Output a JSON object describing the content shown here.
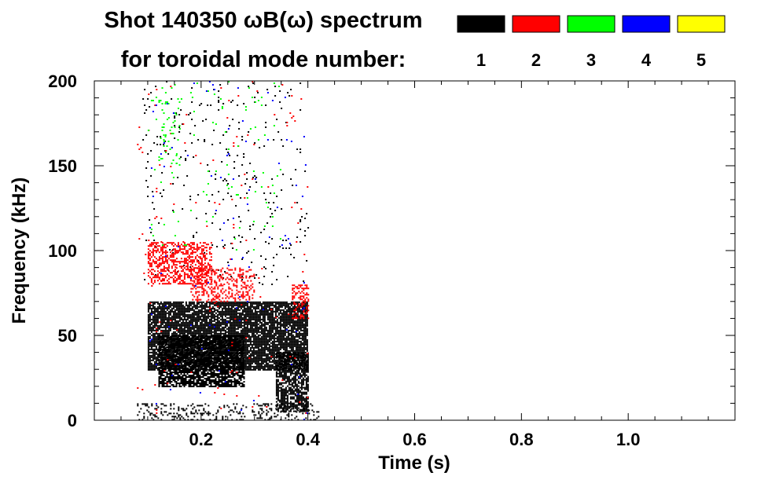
{
  "chart_data": {
    "type": "heatmap",
    "title_line1": "Shot 140350 ωB(ω) spectrum",
    "title_line2": "for toroidal mode number:",
    "xlabel": "Time (s)",
    "ylabel": "Frequency (kHz)",
    "xlim": [
      0.0,
      1.2
    ],
    "ylim": [
      0,
      200
    ],
    "x_ticks": [
      "0.2",
      "0.4",
      "0.6",
      "0.8",
      "1.0"
    ],
    "x_tick_values": [
      0.2,
      0.4,
      0.6,
      0.8,
      1.0
    ],
    "y_ticks": [
      "0",
      "50",
      "100",
      "150",
      "200"
    ],
    "y_tick_values": [
      0,
      50,
      100,
      150,
      200
    ],
    "legend": [
      {
        "label": "1",
        "color": "#000000"
      },
      {
        "label": "2",
        "color": "#ff0000"
      },
      {
        "label": "3",
        "color": "#00ff00"
      },
      {
        "label": "4",
        "color": "#0000ff"
      },
      {
        "label": "5",
        "color": "#ffff00"
      }
    ],
    "regions": [
      {
        "mode": "1",
        "t": [
          0.1,
          0.4
        ],
        "f": [
          30,
          70
        ],
        "density": 0.85
      },
      {
        "mode": "1",
        "t": [
          0.12,
          0.28
        ],
        "f": [
          20,
          50
        ],
        "density": 0.75
      },
      {
        "mode": "1",
        "t": [
          0.34,
          0.4
        ],
        "f": [
          5,
          40
        ],
        "density": 0.7
      },
      {
        "mode": "1",
        "t": [
          0.08,
          0.42
        ],
        "f": [
          0,
          10
        ],
        "density": 0.2
      },
      {
        "mode": "1",
        "t": [
          0.09,
          0.4
        ],
        "f": [
          80,
          200
        ],
        "density": 0.02
      },
      {
        "mode": "2",
        "t": [
          0.1,
          0.22
        ],
        "f": [
          80,
          105
        ],
        "density": 0.45
      },
      {
        "mode": "2",
        "t": [
          0.18,
          0.3
        ],
        "f": [
          70,
          90
        ],
        "density": 0.3
      },
      {
        "mode": "2",
        "t": [
          0.37,
          0.4
        ],
        "f": [
          60,
          80
        ],
        "density": 0.45
      },
      {
        "mode": "2",
        "t": [
          0.08,
          0.4
        ],
        "f": [
          0,
          200
        ],
        "density": 0.006
      },
      {
        "mode": "3",
        "t": [
          0.12,
          0.16
        ],
        "f": [
          150,
          200
        ],
        "density": 0.05
      },
      {
        "mode": "3",
        "t": [
          0.1,
          0.35
        ],
        "f": [
          100,
          200
        ],
        "density": 0.012
      },
      {
        "mode": "4",
        "t": [
          0.1,
          0.4
        ],
        "f": [
          0,
          200
        ],
        "density": 0.004
      }
    ]
  }
}
